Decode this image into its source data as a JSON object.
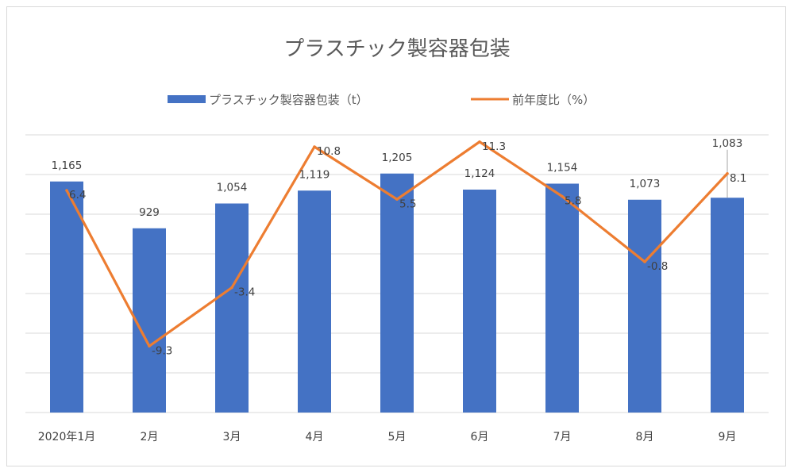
{
  "chart_data": {
    "type": "bar",
    "title": "プラスチック製容器包装",
    "categories": [
      "2020年1月",
      "2月",
      "3月",
      "4月",
      "5月",
      "6月",
      "7月",
      "8月",
      "9月"
    ],
    "series": [
      {
        "name": "プラスチック製容器包装（t）",
        "kind": "bar",
        "axis": "primary",
        "color": "#4472C4",
        "values": [
          1165,
          929,
          1054,
          1119,
          1205,
          1124,
          1154,
          1073,
          1083
        ],
        "labels": [
          "1,165",
          "929",
          "1,054",
          "1,119",
          "1,205",
          "1,124",
          "1,154",
          "1,073",
          "1,083"
        ]
      },
      {
        "name": "前年度比（%）",
        "kind": "line",
        "axis": "secondary",
        "color": "#ED7D31",
        "values": [
          6.4,
          -9.3,
          -3.4,
          10.8,
          5.5,
          11.3,
          5.8,
          -0.8,
          8.1
        ],
        "labels": [
          "6.4",
          "-9.3",
          "-3.4",
          "10.8",
          "5.5",
          "11.3",
          "5.8",
          "-0.8",
          "8.1"
        ]
      }
    ],
    "ylim": [
      0,
      1400
    ],
    "y2lim": [
      -16,
      12
    ],
    "grid": true,
    "legend": "top-center",
    "xlabel": "",
    "ylabel": ""
  }
}
